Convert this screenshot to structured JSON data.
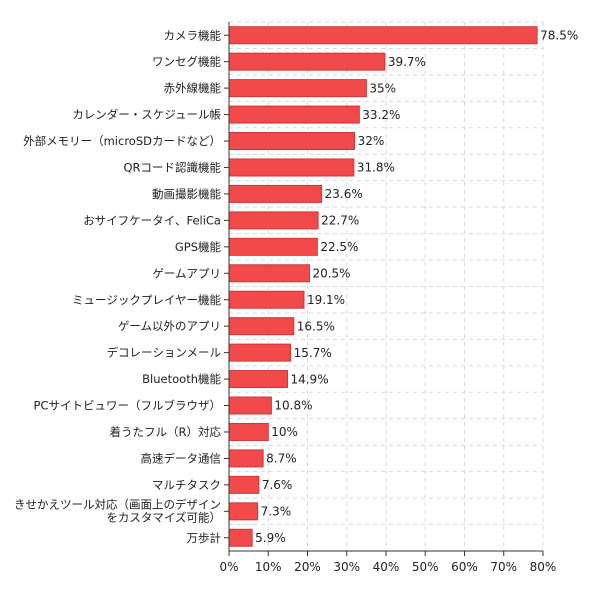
{
  "chart_data": {
    "type": "bar",
    "orientation": "horizontal",
    "categories": [
      "カメラ機能",
      "ワンセグ機能",
      "赤外線機能",
      "カレンダー・スケジュール帳",
      "外部メモリー（microSDカードなど）",
      "QRコード認識機能",
      "動画撮影機能",
      "おサイフケータイ、FeliCa",
      "GPS機能",
      "ゲームアプリ",
      "ミュージックプレイヤー機能",
      "ゲーム以外のアプリ",
      "デコレーションメール",
      "Bluetooth機能",
      "PCサイトビュワー（フルブラウザ）",
      "着うたフル（R）対応",
      "高速データ通信",
      "マルチタスク",
      "きせかえツール対応（画面上のデザインをカスタマイズ可能）",
      "万歩計"
    ],
    "values": [
      78.5,
      39.7,
      35,
      33.2,
      32,
      31.8,
      23.6,
      22.7,
      22.5,
      20.5,
      19.1,
      16.5,
      15.7,
      14.9,
      10.8,
      10,
      8.7,
      7.6,
      7.3,
      5.9
    ],
    "value_labels": [
      "78.5%",
      "39.7%",
      "35%",
      "33.2%",
      "32%",
      "31.8%",
      "23.6%",
      "22.7%",
      "22.5%",
      "20.5%",
      "19.1%",
      "16.5%",
      "15.7%",
      "14.9%",
      "10.8%",
      "10%",
      "8.7%",
      "7.6%",
      "7.3%",
      "5.9%"
    ],
    "xlim": [
      0,
      80
    ],
    "xticks": [
      "0%",
      "10%",
      "20%",
      "30%",
      "40%",
      "50%",
      "60%",
      "70%",
      "80%"
    ],
    "grid": true,
    "bar_color": "#f24a4a",
    "bar_edge_color": "#cf3636"
  }
}
